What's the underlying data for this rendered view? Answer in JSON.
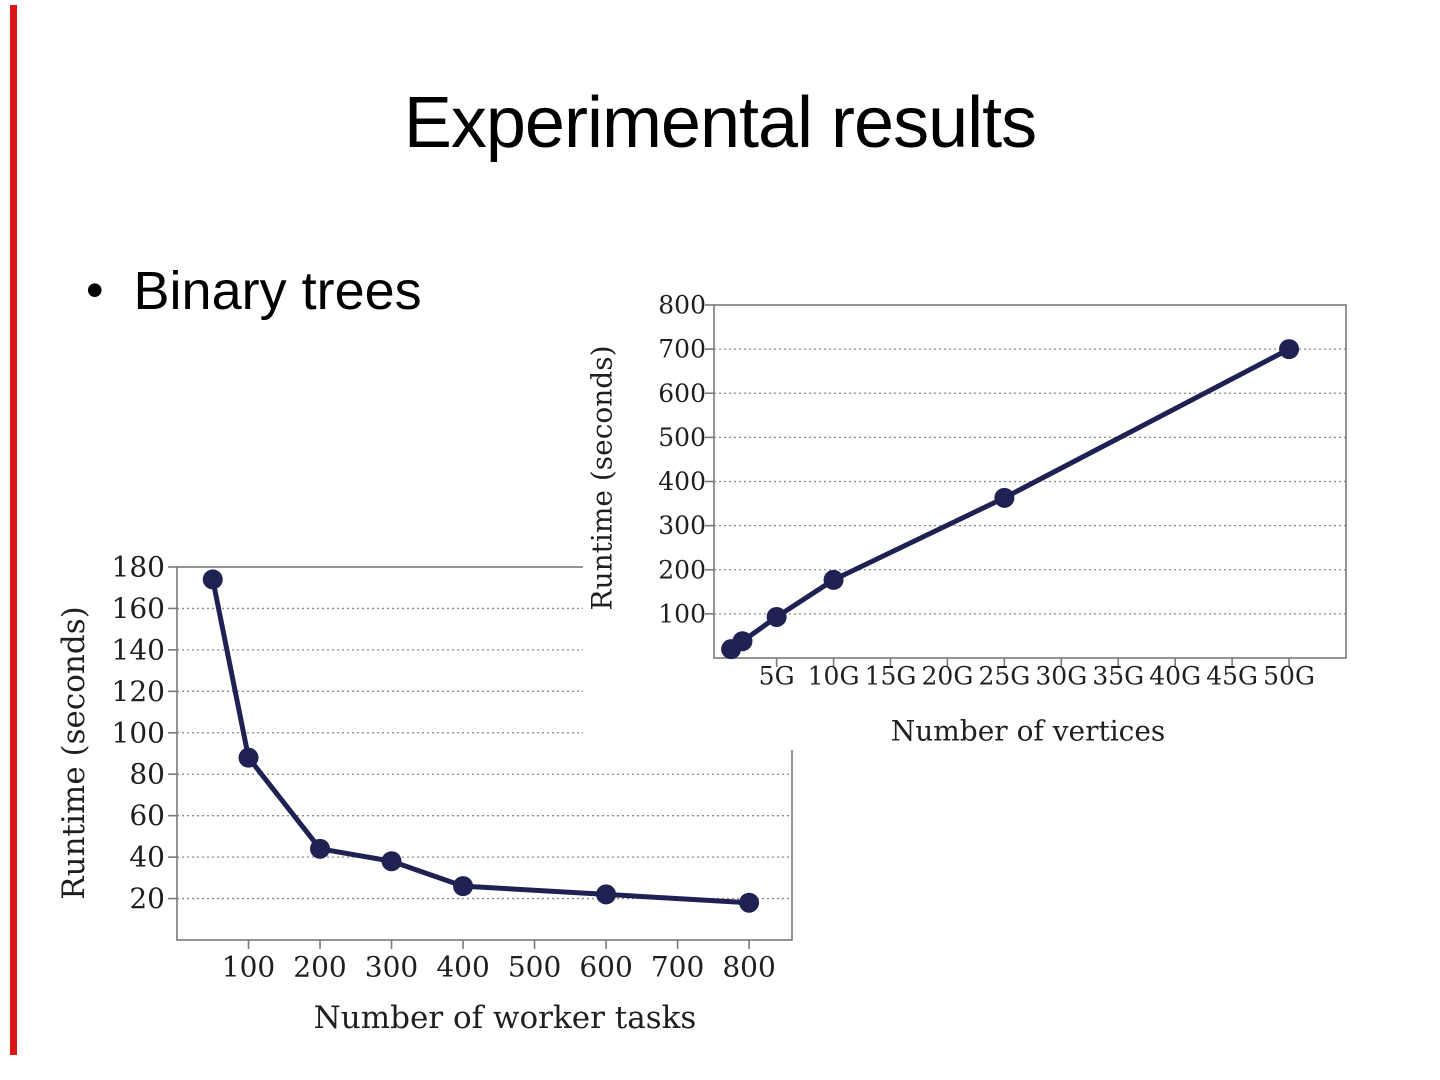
{
  "slide": {
    "title": "Experimental results",
    "bullet": "Binary trees",
    "bullet_marker": "•"
  },
  "colors": {
    "accent_bar": "#dd1515",
    "line": "#1f2152",
    "marker": "#1f2152",
    "grid": "#8a8a8a",
    "frame": "#7a7a7a",
    "chart_text": "#1f1f1f",
    "background": "#ffffff"
  },
  "chart_data": [
    {
      "id": "worker-tasks-chart",
      "type": "line",
      "title": "",
      "xlabel": "Number of worker tasks",
      "ylabel": "Runtime (seconds)",
      "x": [
        50,
        100,
        200,
        300,
        400,
        600,
        800
      ],
      "values": [
        174,
        88,
        44,
        38,
        26,
        22,
        18
      ],
      "xticks": [
        100,
        200,
        300,
        400,
        500,
        600,
        700,
        800
      ],
      "xtick_labels": [
        "100",
        "200",
        "300",
        "400",
        "500",
        "600",
        "700",
        "800"
      ],
      "yticks": [
        20,
        40,
        60,
        80,
        100,
        120,
        140,
        160,
        180
      ],
      "ytick_labels": [
        "20",
        "40",
        "60",
        "80",
        "100",
        "120",
        "140",
        "160",
        "180"
      ],
      "xlim": [
        0,
        860
      ],
      "ylim": [
        0,
        180
      ],
      "grid": "dotted horizontal",
      "legend": "none"
    },
    {
      "id": "vertices-chart",
      "type": "line",
      "title": "",
      "xlabel": "Number of vertices",
      "ylabel": "Runtime (seconds)",
      "x": [
        1,
        2,
        5,
        10,
        25,
        50
      ],
      "values": [
        20,
        38,
        93,
        177,
        363,
        700
      ],
      "xticks": [
        5,
        10,
        15,
        20,
        25,
        30,
        35,
        40,
        45,
        50
      ],
      "xtick_labels": [
        "5G",
        "10G",
        "15G",
        "20G",
        "25G",
        "30G",
        "35G",
        "40G",
        "45G",
        "50G"
      ],
      "yticks": [
        100,
        200,
        300,
        400,
        500,
        600,
        700,
        800
      ],
      "ytick_labels": [
        "100",
        "200",
        "300",
        "400",
        "500",
        "600",
        "700",
        "800"
      ],
      "xlim": [
        -0.5,
        55
      ],
      "ylim": [
        0,
        800
      ],
      "grid": "dotted horizontal",
      "legend": "none"
    }
  ]
}
